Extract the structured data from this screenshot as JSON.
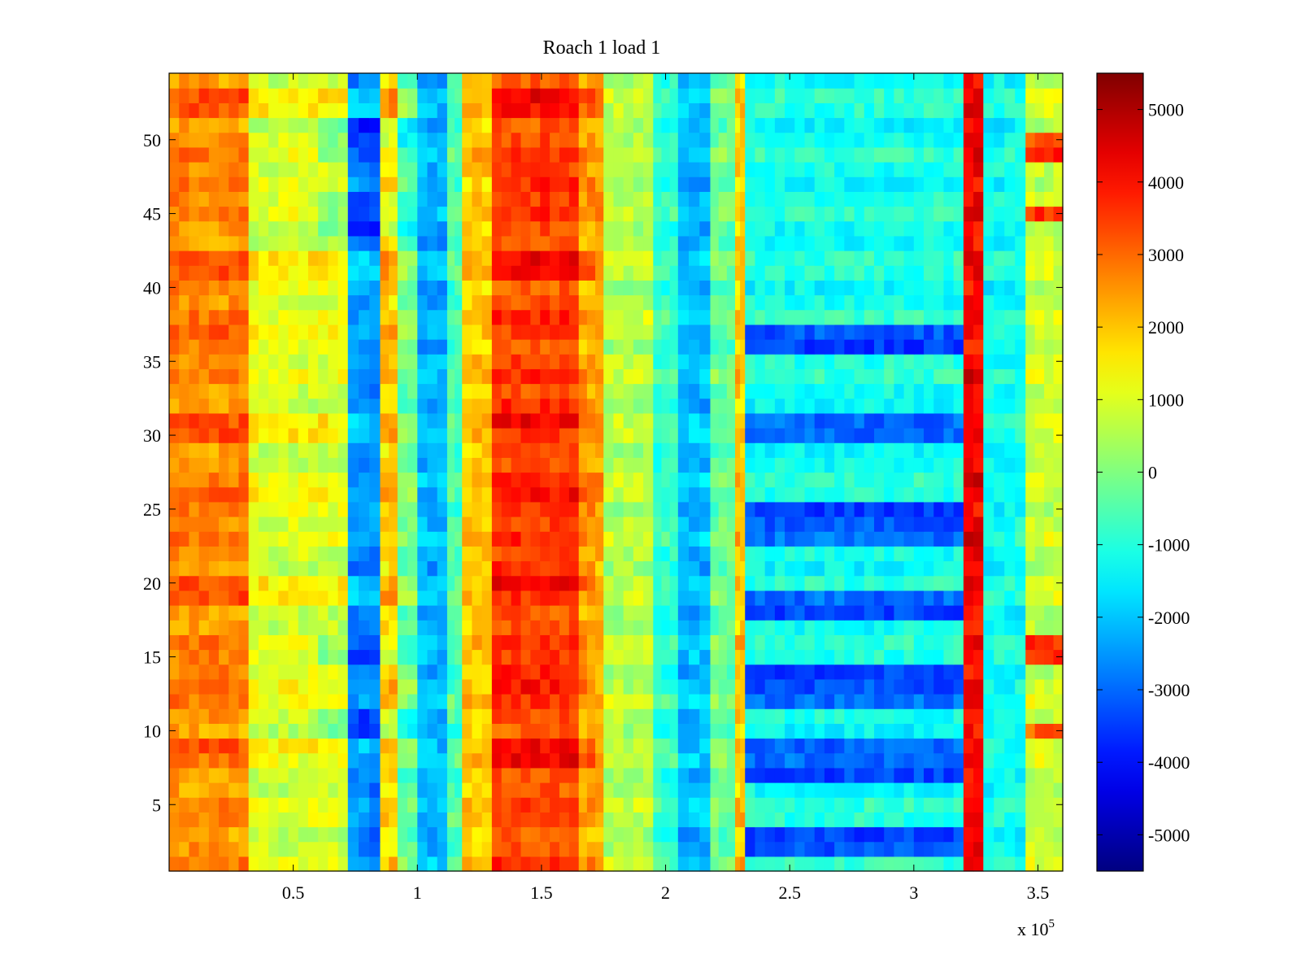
{
  "chart_data": {
    "type": "heatmap",
    "title": "Roach 1 load 1",
    "xlabel": "",
    "ylabel": "",
    "x_range": [
      0,
      360000
    ],
    "y_range": [
      0.5,
      54.5
    ],
    "x_ticks": [
      50000,
      100000,
      150000,
      200000,
      250000,
      300000,
      350000
    ],
    "x_tick_labels": [
      "0.5",
      "1",
      "1.5",
      "2",
      "2.5",
      "3",
      "3.5"
    ],
    "x_exponent_label": "x 10",
    "x_exponent_power": "5",
    "y_ticks": [
      5,
      10,
      15,
      20,
      25,
      30,
      35,
      40,
      45,
      50
    ],
    "y_tick_labels": [
      "5",
      "10",
      "15",
      "20",
      "25",
      "30",
      "35",
      "40",
      "45",
      "50"
    ],
    "colormap": "jet",
    "clim": [
      -5500,
      5500
    ],
    "colorbar_ticks": [
      5000,
      4000,
      3000,
      2000,
      1000,
      0,
      -1000,
      -2000,
      -3000,
      -4000,
      -5000
    ],
    "colorbar_tick_labels": [
      "5000",
      "4000",
      "3000",
      "2000",
      "1000",
      "0",
      "-1000",
      "-2000",
      "-3000",
      "-4000",
      "-5000"
    ],
    "rows": 54,
    "column_bands": [
      {
        "x_start": 0,
        "x_end": 32000,
        "mean_value": 2600
      },
      {
        "x_start": 32000,
        "x_end": 72000,
        "mean_value": 900
      },
      {
        "x_start": 72000,
        "x_end": 85000,
        "mean_value": -2600
      },
      {
        "x_start": 85000,
        "x_end": 92000,
        "mean_value": 1800
      },
      {
        "x_start": 92000,
        "x_end": 100000,
        "mean_value": -300
      },
      {
        "x_start": 100000,
        "x_end": 112000,
        "mean_value": -2200
      },
      {
        "x_start": 112000,
        "x_end": 118000,
        "mean_value": -500
      },
      {
        "x_start": 118000,
        "x_end": 130000,
        "mean_value": 2000
      },
      {
        "x_start": 130000,
        "x_end": 165000,
        "mean_value": 3400
      },
      {
        "x_start": 165000,
        "x_end": 175000,
        "mean_value": 2400
      },
      {
        "x_start": 175000,
        "x_end": 195000,
        "mean_value": 600
      },
      {
        "x_start": 195000,
        "x_end": 205000,
        "mean_value": -800
      },
      {
        "x_start": 205000,
        "x_end": 218000,
        "mean_value": -2100
      },
      {
        "x_start": 218000,
        "x_end": 228000,
        "mean_value": -200
      },
      {
        "x_start": 228000,
        "x_end": 232000,
        "mean_value": 2000
      },
      {
        "x_start": 232000,
        "x_end": 320000,
        "mean_value": -1800
      },
      {
        "x_start": 320000,
        "x_end": 328000,
        "mean_value": 4200
      },
      {
        "x_start": 328000,
        "x_end": 345000,
        "mean_value": -1200
      },
      {
        "x_start": 345000,
        "x_end": 360000,
        "mean_value": 800
      }
    ],
    "row_modulation_notes": "rows near 9, 13-14, 19-20, 25-26, 30-31, 36-37, 40-42, 47, 52-53 are warmer on the left; right region (x>=232000) has cold rows at 2-3, 7-9, 12-14, 18-19, 23-25, 30-31, 36-37; far-right hot rows at 10, 15-16, 45, 49-50"
  }
}
